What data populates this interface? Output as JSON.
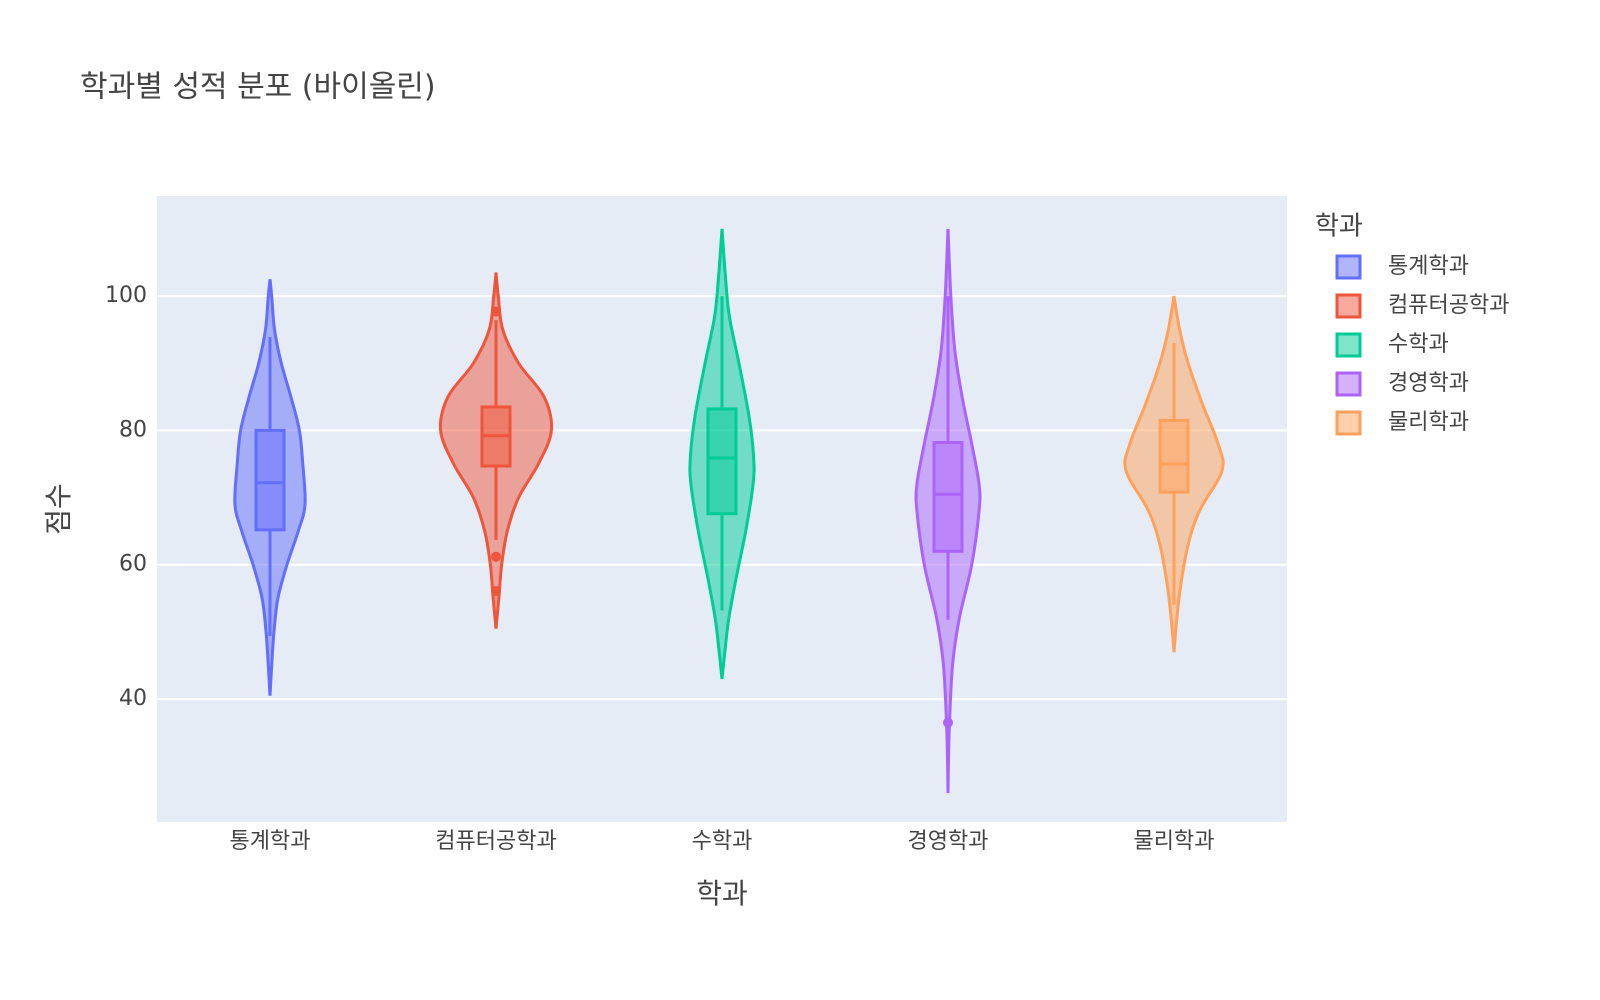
{
  "chart_data": {
    "type": "violin",
    "title": "학과별 성적 분포 (바이올린)",
    "x_label": "학과",
    "y_label": "점수",
    "legend_title": "학과",
    "categories": [
      "통계학과",
      "컴퓨터공학과",
      "수학과",
      "경영학과",
      "물리학과"
    ],
    "ylim": [
      21.7,
      114.9
    ],
    "yticks": [
      40,
      60,
      80,
      100
    ],
    "grid": true,
    "legend": "right",
    "series": [
      {
        "name": "통계학과",
        "color": "#636efa",
        "lower_fence": 49.4,
        "q1": 65.2,
        "median": 72.2,
        "q3": 80,
        "upper_fence": 93.9,
        "outliers": [],
        "density": {
          "y": [
            40.5,
            45,
            50,
            55,
            60,
            65,
            69,
            75,
            80,
            85,
            90,
            95,
            100,
            102.5
          ],
          "width": [
            0,
            0.03,
            0.07,
            0.14,
            0.3,
            0.5,
            0.62,
            0.58,
            0.52,
            0.37,
            0.2,
            0.08,
            0.03,
            0
          ]
        }
      },
      {
        "name": "컴퓨터공학과",
        "color": "#ef553b",
        "lower_fence": 63.7,
        "q1": 74.7,
        "median": 79.2,
        "q3": 83.5,
        "upper_fence": 96.4,
        "outliers": [
          61.2,
          56.1,
          97.7
        ],
        "density": {
          "y": [
            50.5,
            55,
            60,
            65,
            70,
            75,
            80,
            85,
            90,
            95,
            100,
            103.5
          ],
          "width": [
            0,
            0.05,
            0.1,
            0.2,
            0.4,
            0.75,
            0.98,
            0.85,
            0.4,
            0.12,
            0.04,
            0
          ]
        }
      },
      {
        "name": "수학과",
        "color": "#00cc96",
        "lower_fence": 53.2,
        "q1": 67.6,
        "median": 75.9,
        "q3": 83.2,
        "upper_fence": 100,
        "outliers": [],
        "density": {
          "y": [
            43,
            47,
            52,
            58,
            65,
            72,
            76,
            82,
            90,
            97,
            103,
            110
          ],
          "width": [
            0,
            0.05,
            0.12,
            0.25,
            0.42,
            0.55,
            0.56,
            0.48,
            0.3,
            0.13,
            0.06,
            0
          ]
        }
      },
      {
        "name": "경영학과",
        "color": "#ab63fa",
        "lower_fence": 51.8,
        "q1": 62,
        "median": 70.5,
        "q3": 78.2,
        "upper_fence": 100,
        "outliers": [
          36.5
        ],
        "density": {
          "y": [
            26,
            35,
            45,
            52,
            60,
            68,
            72,
            78,
            85,
            92,
            100,
            110
          ],
          "width": [
            0,
            0.02,
            0.08,
            0.2,
            0.42,
            0.55,
            0.55,
            0.42,
            0.25,
            0.12,
            0.05,
            0
          ]
        }
      },
      {
        "name": "물리학과",
        "color": "#ffa15a",
        "lower_fence": 54,
        "q1": 70.8,
        "median": 75,
        "q3": 81.5,
        "upper_fence": 93,
        "outliers": [],
        "density": {
          "y": [
            47,
            52,
            57,
            63,
            68,
            74,
            78,
            84,
            90,
            95,
            100
          ],
          "width": [
            0,
            0.05,
            0.12,
            0.25,
            0.45,
            0.85,
            0.78,
            0.5,
            0.25,
            0.1,
            0
          ]
        }
      }
    ]
  }
}
